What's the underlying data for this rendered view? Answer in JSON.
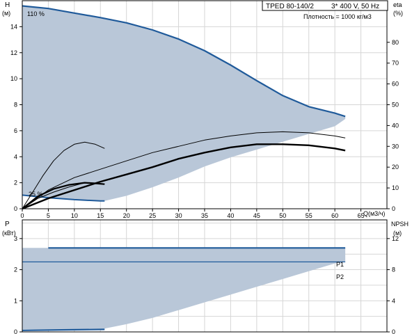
{
  "header": {
    "title": "TPED 80-140/2",
    "supply": "3* 400 V, 50 Hz",
    "density": "Плотность = 1000 кг/м3"
  },
  "colors": {
    "band": "#b9c7d8",
    "qh_curve": "#1f5a9a",
    "grid": "#d6d6d6",
    "frame": "#000000"
  },
  "chart_data": [
    {
      "type": "line",
      "panel": "top",
      "xlabel": "Q(м3/ч)",
      "ylabel_left": "H",
      "ylabel_left_unit": "(м)",
      "ylabel_right": "eta",
      "ylabel_right_unit": "(%)",
      "x_ticks": [
        0,
        5,
        10,
        15,
        20,
        25,
        30,
        35,
        40,
        45,
        50,
        55,
        60,
        65
      ],
      "y_left_ticks": [
        0,
        2,
        4,
        6,
        8,
        10,
        12,
        14
      ],
      "y_right_ticks": [
        0,
        10,
        20,
        30,
        40,
        50,
        60,
        70,
        80
      ],
      "xlim": [
        0,
        70
      ],
      "ylim": [
        0,
        16
      ],
      "y_right_lim": [
        0,
        100
      ],
      "annotations": [
        "110 %",
        "25 %"
      ],
      "series": [
        {
          "role": "operating-range-band",
          "upper": [
            [
              0,
              15.6
            ],
            [
              5,
              15.4
            ],
            [
              10,
              15.05
            ],
            [
              15,
              14.7
            ],
            [
              20,
              14.3
            ],
            [
              25,
              13.75
            ],
            [
              30,
              13.05
            ],
            [
              35,
              12.15
            ],
            [
              40,
              11.05
            ],
            [
              45,
              9.85
            ],
            [
              50,
              8.7
            ],
            [
              55,
              7.85
            ],
            [
              60,
              7.35
            ],
            [
              62,
              7.1
            ]
          ],
          "lower": [
            [
              0,
              1.05
            ],
            [
              5,
              0.85
            ],
            [
              10,
              0.7
            ],
            [
              15,
              0.6
            ],
            [
              15.8,
              0.6
            ],
            [
              20,
              1.0
            ],
            [
              25,
              1.65
            ],
            [
              30,
              2.4
            ],
            [
              35,
              3.25
            ],
            [
              40,
              3.95
            ],
            [
              45,
              4.55
            ],
            [
              50,
              5.15
            ],
            [
              55,
              5.75
            ],
            [
              60,
              6.35
            ],
            [
              62,
              6.9
            ]
          ]
        },
        {
          "role": "qh-max",
          "values": [
            [
              0,
              15.6
            ],
            [
              5,
              15.4
            ],
            [
              10,
              15.05
            ],
            [
              15,
              14.7
            ],
            [
              20,
              14.3
            ],
            [
              25,
              13.75
            ],
            [
              30,
              13.05
            ],
            [
              35,
              12.15
            ],
            [
              40,
              11.05
            ],
            [
              45,
              9.85
            ],
            [
              50,
              8.7
            ],
            [
              55,
              7.85
            ],
            [
              60,
              7.35
            ],
            [
              62,
              7.1
            ]
          ]
        },
        {
          "role": "qh-min",
          "values": [
            [
              0,
              1.05
            ],
            [
              5,
              0.85
            ],
            [
              10,
              0.7
            ],
            [
              15,
              0.6
            ],
            [
              15.8,
              0.6
            ]
          ]
        },
        {
          "role": "efficiency-110",
          "axis": "right",
          "values": [
            [
              0,
              0
            ],
            [
              2,
              8
            ],
            [
              4,
              16
            ],
            [
              6,
              23
            ],
            [
              8,
              28
            ],
            [
              10,
              31
            ],
            [
              12,
              32
            ],
            [
              14,
              31
            ],
            [
              15.8,
              29
            ]
          ]
        },
        {
          "role": "efficiency-thin",
          "axis": "right",
          "values": [
            [
              0,
              0
            ],
            [
              5,
              9
            ],
            [
              10,
              15
            ],
            [
              15,
              19
            ],
            [
              20,
              23
            ],
            [
              25,
              27
            ],
            [
              30,
              30
            ],
            [
              35,
              33
            ],
            [
              40,
              35
            ],
            [
              45,
              36.5
            ],
            [
              50,
              37
            ],
            [
              55,
              36.5
            ],
            [
              60,
              35
            ],
            [
              62,
              34
            ]
          ]
        },
        {
          "role": "efficiency-bold",
          "axis": "right",
          "values": [
            [
              0,
              0
            ],
            [
              5,
              5
            ],
            [
              10,
              9
            ],
            [
              15,
              13
            ],
            [
              20,
              16.5
            ],
            [
              25,
              20
            ],
            [
              30,
              24
            ],
            [
              35,
              27
            ],
            [
              40,
              29.5
            ],
            [
              45,
              31
            ],
            [
              50,
              31
            ],
            [
              55,
              30.5
            ],
            [
              60,
              29
            ],
            [
              62,
              28
            ]
          ]
        },
        {
          "role": "efficiency-25-bold",
          "axis": "right",
          "values": [
            [
              0,
              0
            ],
            [
              3,
              6
            ],
            [
              6,
              9.5
            ],
            [
              9,
              11.5
            ],
            [
              12,
              12.5
            ],
            [
              14,
              12.2
            ],
            [
              15.8,
              11.8
            ]
          ]
        },
        {
          "role": "efficiency-25-thin",
          "axis": "right",
          "values": [
            [
              0,
              0
            ],
            [
              3,
              5
            ],
            [
              6,
              8
            ],
            [
              9,
              10.5
            ],
            [
              12,
              12.5
            ],
            [
              15.8,
              12
            ]
          ]
        }
      ]
    },
    {
      "type": "line",
      "panel": "bottom",
      "ylabel_left": "P",
      "ylabel_left_unit": "(кВт)",
      "ylabel_right": "NPSH",
      "ylabel_right_unit": "(м)",
      "y_left_ticks": [
        0,
        1,
        2,
        3
      ],
      "y_right_ticks": [
        0,
        4,
        8,
        12
      ],
      "xlim": [
        0,
        70
      ],
      "ylim": [
        0,
        3.6
      ],
      "y_right_lim": [
        0,
        14.4
      ],
      "series_labels": [
        "P1",
        "P2"
      ],
      "series": [
        {
          "role": "power-band",
          "upper": [
            [
              0,
              2.7
            ],
            [
              62,
              2.7
            ]
          ],
          "lower": [
            [
              0,
              0.08
            ],
            [
              15,
              0.08
            ],
            [
              20,
              0.25
            ],
            [
              25,
              0.45
            ],
            [
              30,
              0.7
            ],
            [
              35,
              0.95
            ],
            [
              40,
              1.2
            ],
            [
              45,
              1.45
            ],
            [
              50,
              1.7
            ],
            [
              55,
              1.95
            ],
            [
              60,
              2.2
            ],
            [
              62,
              2.25
            ]
          ]
        },
        {
          "role": "P1-max",
          "values": [
            [
              5,
              2.7
            ],
            [
              62,
              2.7
            ]
          ]
        },
        {
          "role": "P2-max",
          "values": [
            [
              0,
              2.25
            ],
            [
              62,
              2.25
            ]
          ]
        },
        {
          "role": "P1-min",
          "values": [
            [
              0,
              0.05
            ],
            [
              10,
              0.07
            ],
            [
              15.8,
              0.08
            ]
          ]
        }
      ]
    }
  ]
}
